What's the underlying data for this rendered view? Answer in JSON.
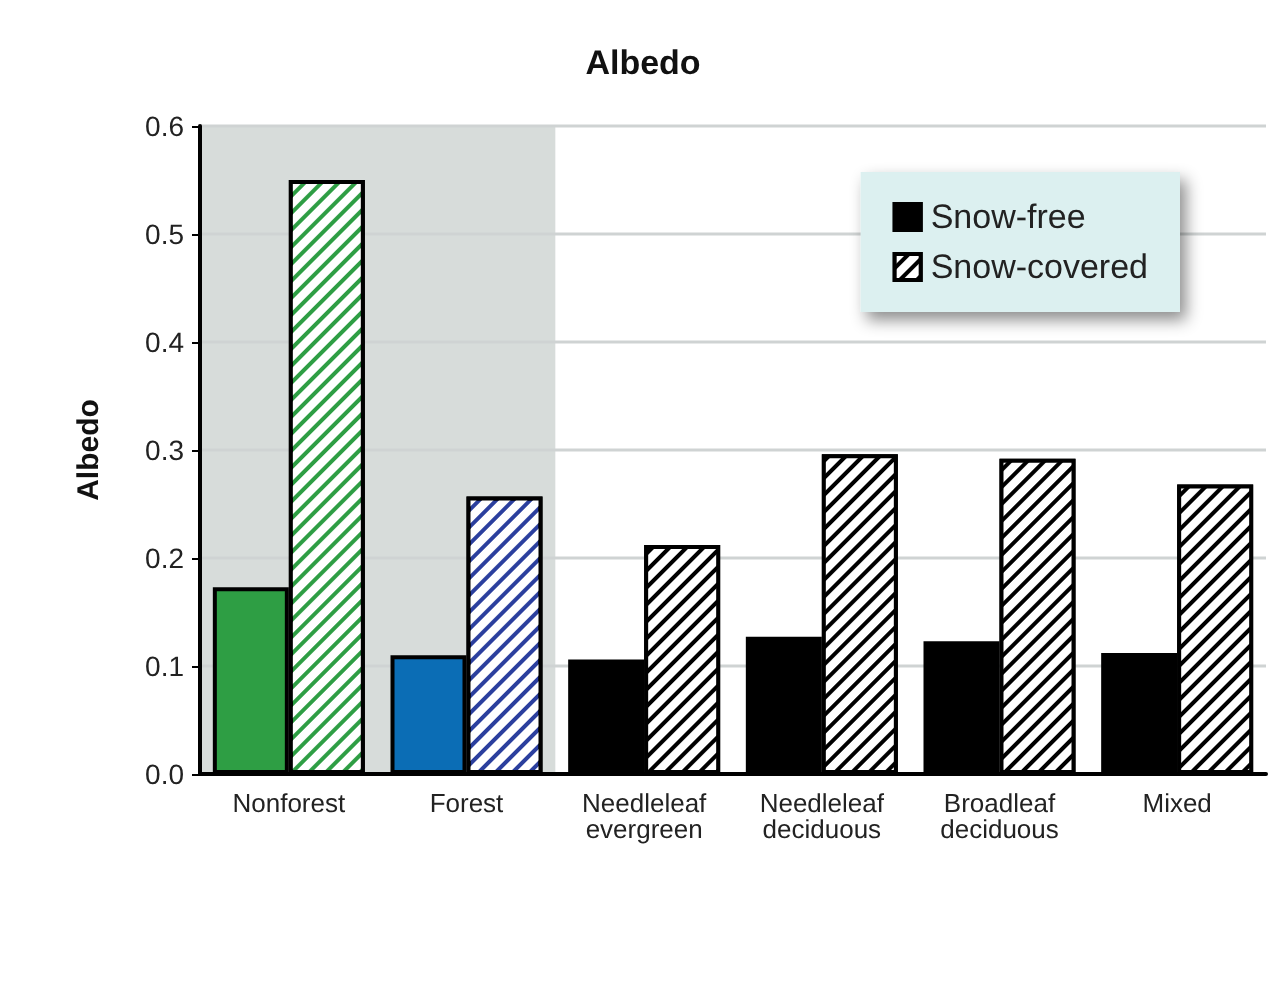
{
  "chart_data": {
    "type": "bar",
    "title": "Albedo",
    "ylabel": "Albedo",
    "categories": [
      "Nonforest",
      "Forest",
      "Needleleaf evergreen",
      "Needleleaf deciduous",
      "Broadleaf deciduous",
      "Mixed"
    ],
    "series": [
      {
        "name": "Snow-free",
        "color": "#000000",
        "colors": [
          "#2e9e44",
          "#0b6db5",
          "#000000",
          "#000000",
          "#000000",
          "#000000"
        ],
        "values": [
          0.173,
          0.11,
          0.106,
          0.127,
          0.123,
          0.112
        ]
      },
      {
        "name": "Snow-covered",
        "color": "#000000",
        "colors": [
          "#2e9e44",
          "#2b3f9e",
          "#000000",
          "#000000",
          "#000000",
          "#000000"
        ],
        "values": [
          0.55,
          0.257,
          0.212,
          0.296,
          0.292,
          0.268
        ]
      }
    ],
    "ylim": [
      0,
      0.6
    ],
    "yticks": [
      {
        "value": 0,
        "label": "0.0"
      },
      {
        "value": 0.1,
        "label": "0.1"
      },
      {
        "value": 0.2,
        "label": "0.2"
      },
      {
        "value": 0.3,
        "label": "0.3"
      },
      {
        "value": 0.4,
        "label": "0.4"
      },
      {
        "value": 0.5,
        "label": "0.5"
      },
      {
        "value": 0.6,
        "label": "0.6"
      }
    ],
    "bands": [
      {
        "axis": "x",
        "from": "Nonforest",
        "to": "Forest",
        "color": "#d7dcda"
      }
    ],
    "grid": "y",
    "legend": "top right"
  }
}
